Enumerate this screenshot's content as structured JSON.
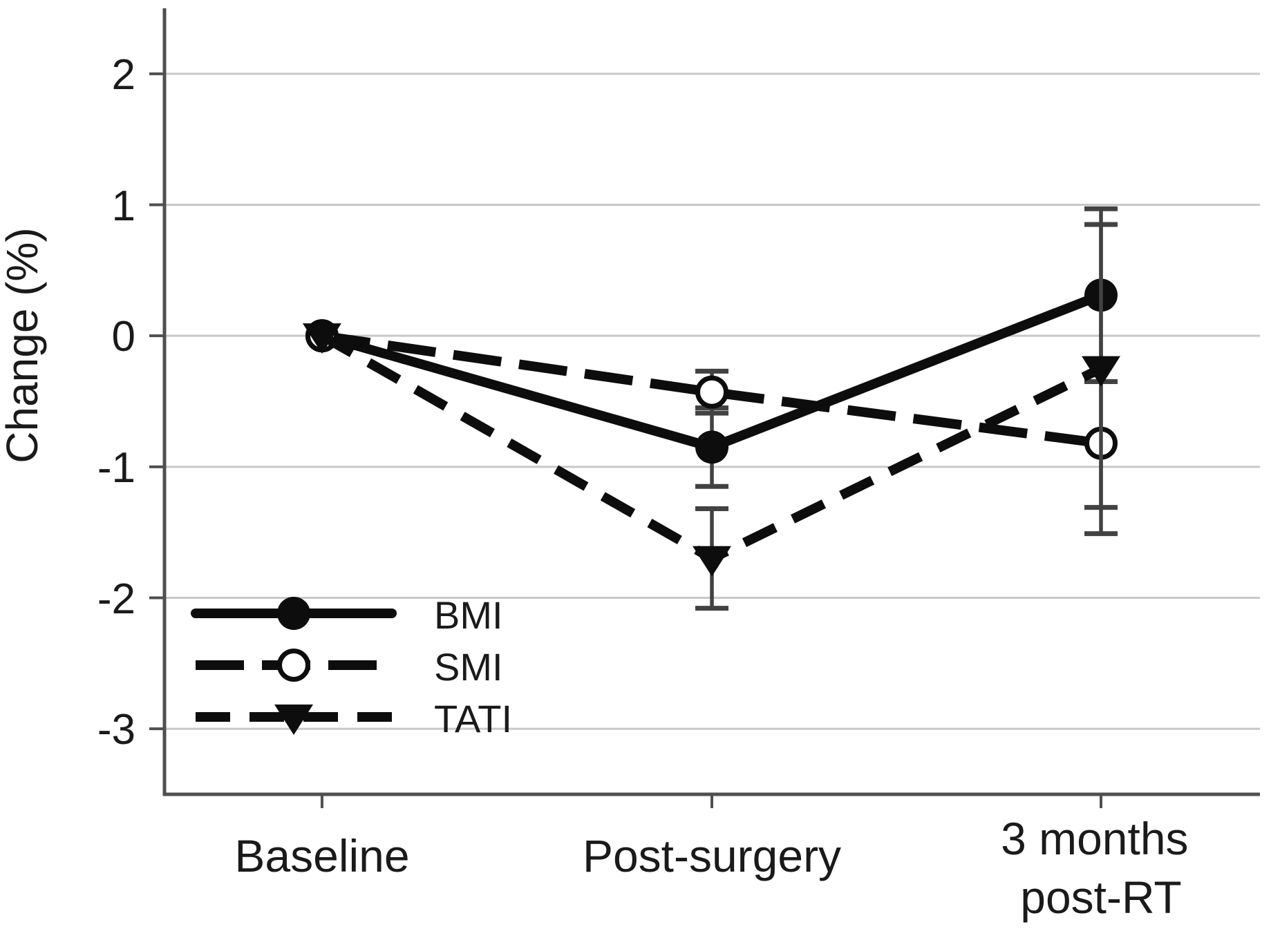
{
  "chart_data": {
    "type": "line",
    "title": "",
    "ylabel": "Change (%)",
    "xlabel": "",
    "categories": [
      "Baseline",
      "Post-surgery",
      "3 months post-RT"
    ],
    "x_label_lines": [
      [
        "Baseline"
      ],
      [
        "Post-surgery"
      ],
      [
        "3 months",
        "post-RT"
      ]
    ],
    "ylim": [
      -3.5,
      2.5
    ],
    "yticks": [
      2,
      1,
      0,
      -1,
      -2,
      -3
    ],
    "grid": "horizontal-gridlines",
    "legend_position": "inside-bottom-left",
    "series": [
      {
        "name": "BMI",
        "line": "solid",
        "marker": "filled-circle",
        "values": [
          0,
          -0.85,
          0.31
        ],
        "error_low": [
          null,
          -1.15,
          -0.35
        ],
        "error_high": [
          null,
          -0.55,
          0.97
        ]
      },
      {
        "name": "SMI",
        "line": "dashed-long",
        "marker": "open-circle",
        "values": [
          0,
          -0.43,
          -0.82
        ],
        "error_low": [
          null,
          -0.59,
          -1.51
        ],
        "error_high": [
          null,
          -0.27,
          -0.35
        ]
      },
      {
        "name": "TATI",
        "line": "dashed-short",
        "marker": "filled-triangle-down",
        "values": [
          0,
          -1.7,
          -0.25
        ],
        "error_low": [
          null,
          -2.08,
          -1.31
        ],
        "error_high": [
          null,
          -1.32,
          0.85
        ]
      }
    ],
    "colors": {
      "series": "#0d0d0d",
      "grid": "#c8c8c8",
      "axis": "#4f4f4f",
      "error_bar": "#424242",
      "text": "#1a1a1a",
      "background": "#ffffff"
    }
  }
}
